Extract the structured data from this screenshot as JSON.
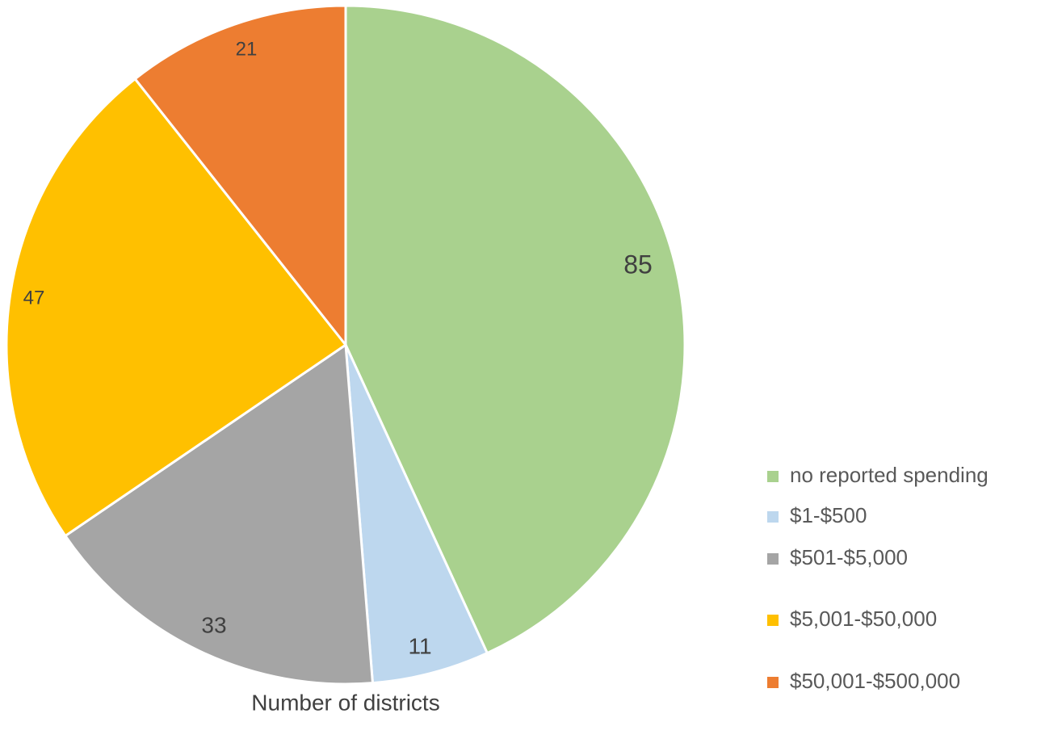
{
  "chart_data": {
    "type": "pie",
    "title": "Number of districts",
    "categories": [
      "no reported spending",
      "$1-$500",
      "$501-$5,000",
      "$5,001-$50,000",
      "$50,001-$500,000"
    ],
    "values": [
      85,
      11,
      33,
      47,
      21
    ],
    "colors": [
      "#a9d18e",
      "#bdd7ee",
      "#a5a5a5",
      "#ffc000",
      "#ed7d31"
    ],
    "legend": "right"
  }
}
